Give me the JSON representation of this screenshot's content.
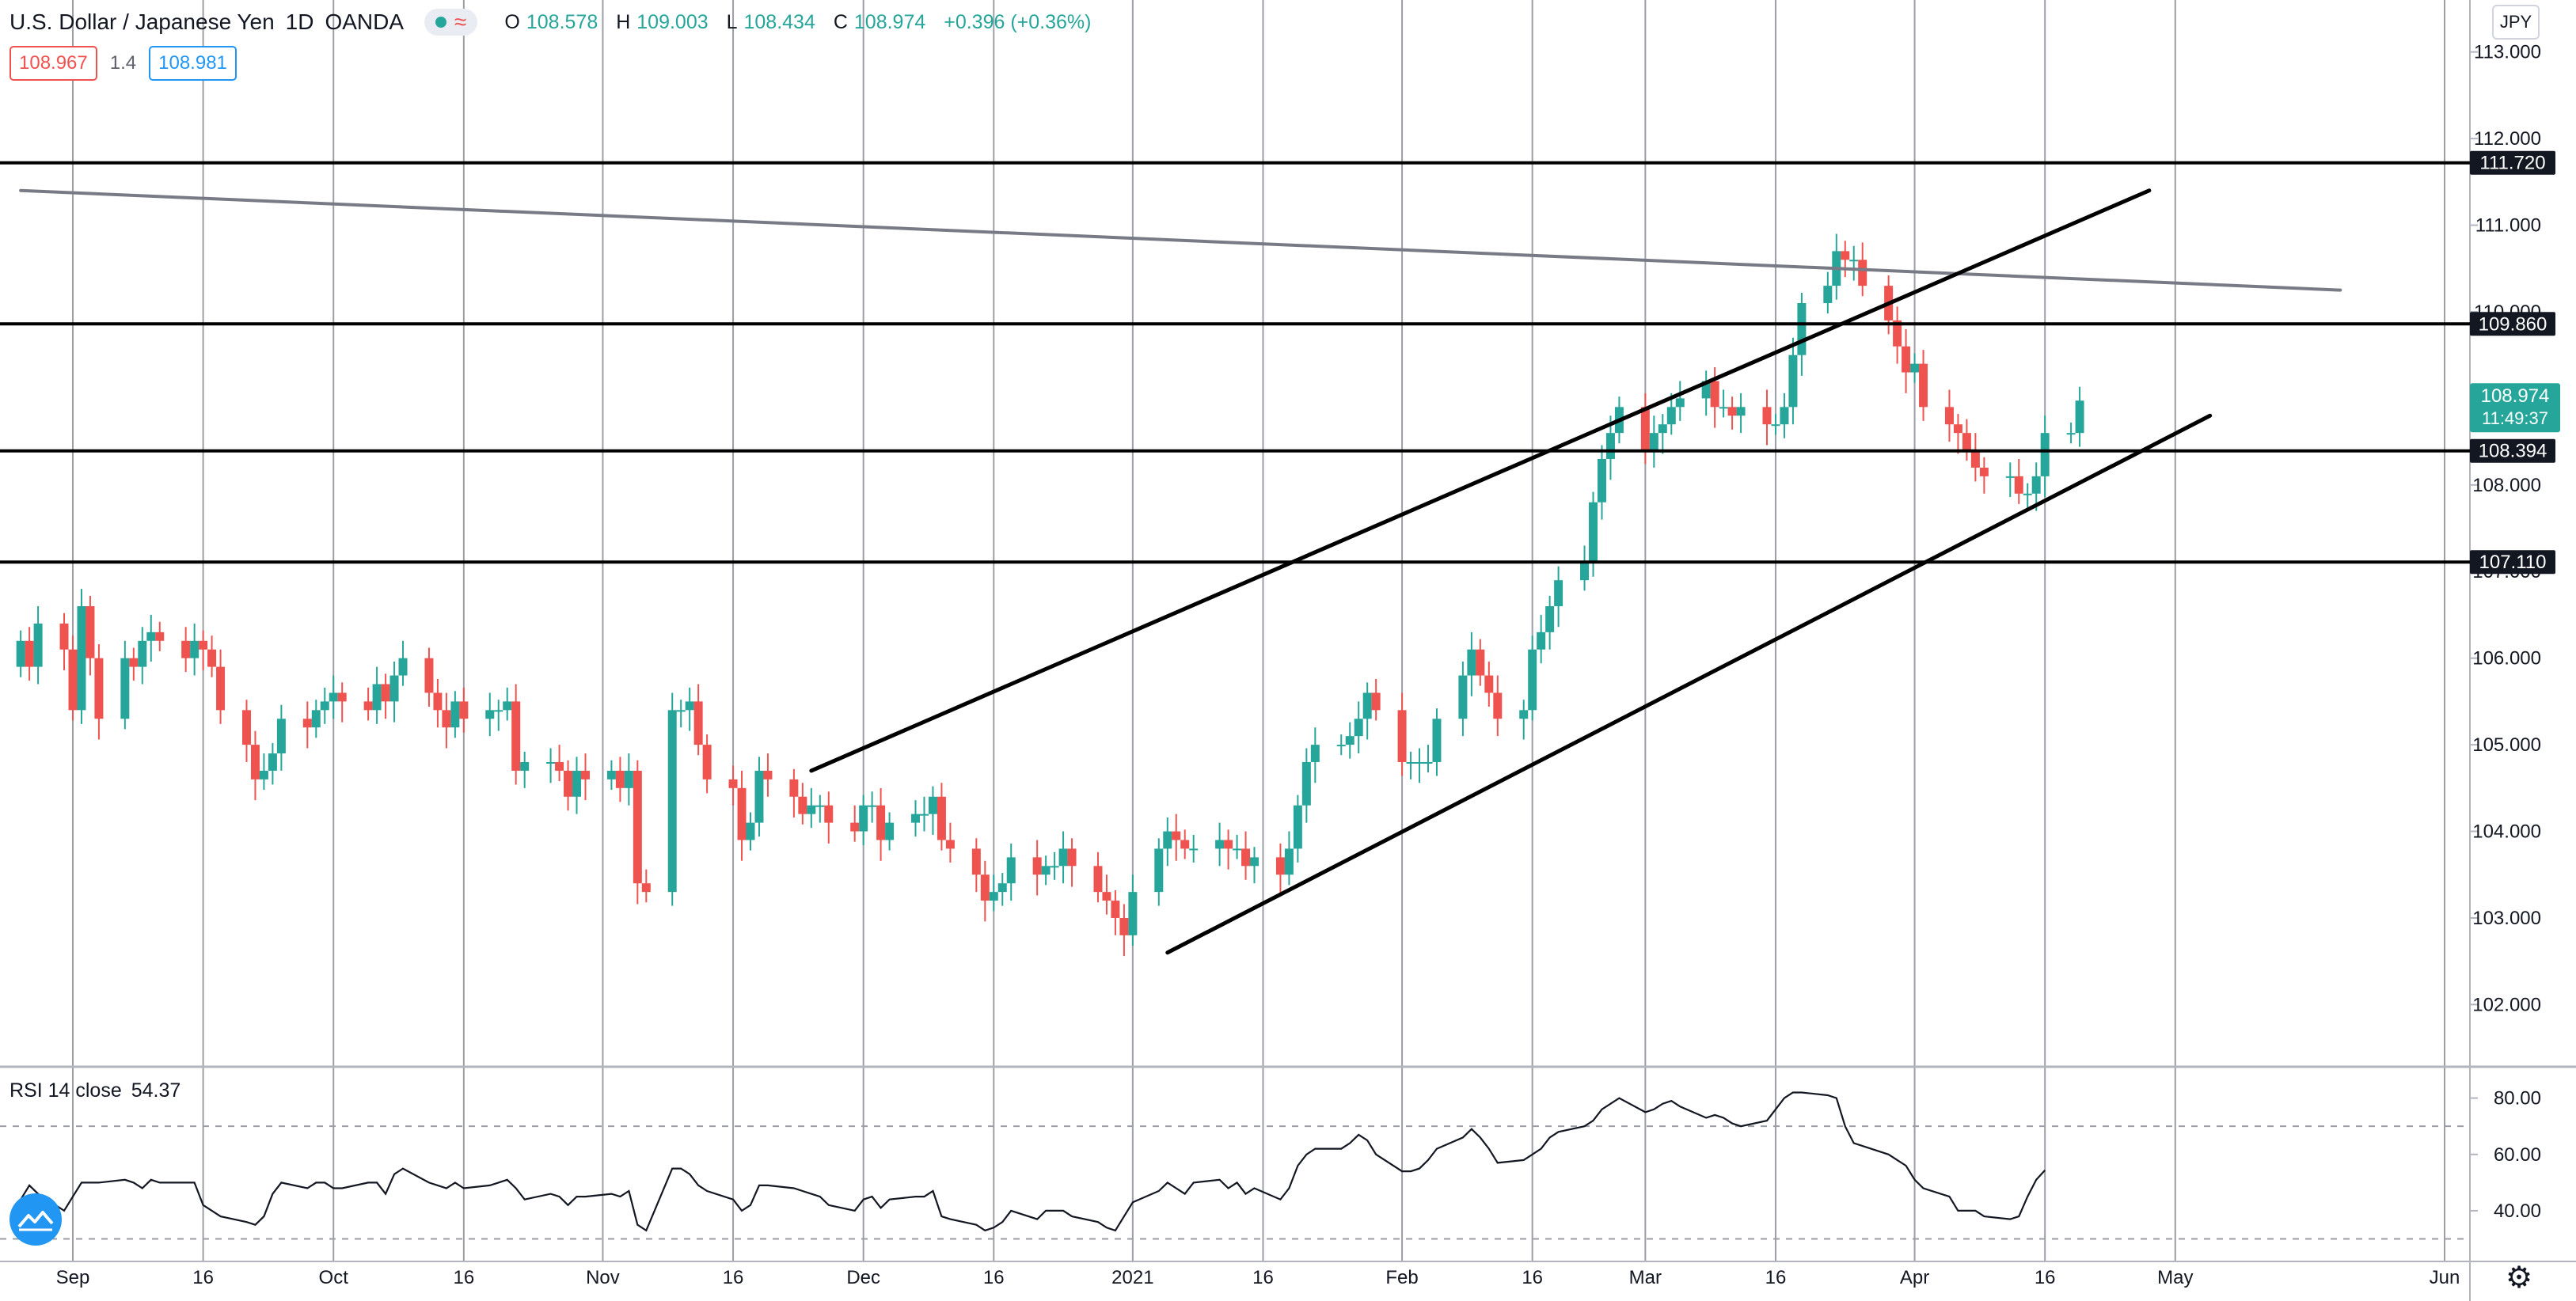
{
  "header": {
    "symbol": "U.S. Dollar / Japanese Yen",
    "interval": "1D",
    "broker": "OANDA",
    "open_label": "O",
    "open": "108.578",
    "high_label": "H",
    "high": "109.003",
    "low_label": "L",
    "low": "108.434",
    "close_label": "C",
    "close": "108.974",
    "change": "+0.396 (+0.36%)"
  },
  "quote": {
    "sell": "108.967",
    "spread": "1.4",
    "buy": "108.981"
  },
  "currency_button": "JPY",
  "colors": {
    "up": "#26a69a",
    "down": "#ef5350",
    "grid": "#9c9ea6",
    "line": "#000000",
    "trend_gray": "#787b86"
  },
  "icons": {
    "toggle": "wave-icon",
    "indicator_logo": "tradingview-logo-icon",
    "settings": "gear-icon"
  },
  "chart_data": [
    {
      "type": "candlestick",
      "x_axis": {
        "unit": "date",
        "start": "2020-08-26",
        "end": "2021-06-01",
        "tick_labels": [
          "Sep",
          "16",
          "Oct",
          "16",
          "Nov",
          "16",
          "Dec",
          "16",
          "2021",
          "16",
          "Feb",
          "16",
          "Mar",
          "16",
          "Apr",
          "16",
          "May",
          "Jun"
        ],
        "tick_dates": [
          "2020-09-01",
          "2020-09-16",
          "2020-10-01",
          "2020-10-16",
          "2020-11-01",
          "2020-11-16",
          "2020-12-01",
          "2020-12-16",
          "2021-01-01",
          "2021-01-16",
          "2021-02-01",
          "2021-02-16",
          "2021-03-01",
          "2021-03-16",
          "2021-04-01",
          "2021-04-16",
          "2021-05-01",
          "2021-06-01"
        ]
      },
      "y_axis": {
        "range": [
          101.3,
          113.6
        ],
        "tick_labels": [
          "102.000",
          "103.000",
          "104.000",
          "105.000",
          "106.000",
          "107.000",
          "108.000",
          "109.000",
          "110.000",
          "111.000",
          "112.000",
          "113.000"
        ],
        "ticks": [
          102,
          103,
          104,
          105,
          106,
          107,
          108,
          109,
          110,
          111,
          112,
          113
        ]
      },
      "grid": true,
      "closes": [
        106.2,
        105.9,
        106.4,
        106.1,
        105.4,
        106.6,
        106.0,
        105.3,
        106.0,
        105.9,
        106.2,
        106.3,
        106.2,
        106.0,
        106.2,
        106.1,
        105.9,
        105.4,
        105.0,
        104.6,
        104.7,
        104.9,
        105.3,
        105.2,
        105.4,
        105.5,
        105.6,
        105.5,
        105.4,
        105.7,
        105.5,
        105.8,
        106.0,
        105.6,
        105.4,
        105.2,
        105.5,
        105.3,
        105.4,
        105.4,
        105.5,
        104.7,
        104.8,
        104.8,
        104.7,
        104.4,
        104.7,
        104.6,
        104.7,
        104.5,
        104.7,
        103.4,
        103.3,
        105.4,
        105.4,
        105.5,
        105.0,
        104.6,
        104.5,
        103.9,
        104.1,
        104.7,
        104.6,
        104.4,
        104.2,
        104.3,
        104.3,
        104.1,
        104.0,
        104.3,
        104.3,
        103.9,
        104.1,
        104.2,
        104.2,
        104.4,
        103.9,
        103.8,
        103.5,
        103.2,
        103.3,
        103.4,
        103.7,
        103.5,
        103.6,
        103.6,
        103.8,
        103.6,
        103.3,
        103.2,
        103.0,
        102.8,
        103.3,
        103.8,
        104.0,
        103.9,
        103.8,
        103.8,
        103.9,
        103.8,
        103.8,
        103.6,
        103.7,
        103.5,
        103.8,
        104.3,
        104.8,
        105.0,
        105.0,
        105.1,
        105.3,
        105.6,
        105.4,
        104.8,
        104.8,
        104.8,
        104.8,
        105.3,
        105.8,
        106.1,
        105.8,
        105.6,
        105.3,
        105.4,
        106.1,
        106.3,
        106.6,
        106.9,
        107.1,
        107.8,
        108.3,
        108.6,
        108.9,
        108.4,
        108.6,
        108.7,
        108.9,
        109.0,
        109.2,
        108.9,
        108.9,
        108.8,
        108.9,
        108.7,
        108.7,
        108.9,
        109.5,
        110.1,
        110.3,
        110.7,
        110.6,
        110.6,
        110.3,
        109.9,
        109.6,
        109.3,
        109.4,
        108.9,
        108.7,
        108.6,
        108.4,
        108.2,
        108.1,
        108.1,
        107.9,
        107.9,
        108.1,
        108.6,
        108.6,
        108.974
      ],
      "rsi": {
        "label": "RSI 14 close",
        "value": "54.37",
        "levels": [
          70,
          30
        ],
        "range": [
          22,
          90
        ],
        "tick_labels": [
          "80.00",
          "60.00",
          "40.00"
        ],
        "ticks": [
          80,
          60,
          40
        ],
        "values": [
          44,
          49,
          46,
          40,
          45,
          50,
          50,
          50,
          51,
          50,
          48,
          51,
          50,
          50,
          50,
          42,
          40,
          38,
          36,
          35,
          38,
          46,
          50,
          48,
          50,
          50,
          48,
          48,
          50,
          50,
          46,
          53,
          55,
          50,
          49,
          48,
          50,
          48,
          49,
          50,
          51,
          48,
          44,
          46,
          45,
          42,
          45,
          45,
          46,
          45,
          47,
          35,
          33,
          55,
          55,
          53,
          49,
          47,
          44,
          40,
          42,
          49,
          49,
          48,
          47,
          46,
          45,
          42,
          40,
          44,
          45,
          41,
          44,
          45,
          45,
          47,
          38,
          37,
          35,
          33,
          34,
          36,
          40,
          37,
          40,
          40,
          40,
          38,
          36,
          34,
          33,
          38,
          43,
          47,
          50,
          48,
          46,
          50,
          51,
          48,
          50,
          46,
          48,
          44,
          48,
          56,
          60,
          62,
          62,
          64,
          67,
          65,
          60,
          54,
          54,
          55,
          58,
          62,
          66,
          69,
          66,
          62,
          57,
          58,
          60,
          62,
          66,
          68,
          70,
          72,
          76,
          78,
          80,
          75,
          76,
          78,
          79,
          77,
          73,
          74,
          73,
          71,
          70,
          72,
          76,
          80,
          82,
          82,
          81,
          80,
          70,
          64,
          63,
          60,
          58,
          56,
          51,
          48,
          45,
          40,
          40,
          40,
          38,
          37,
          38,
          45,
          51,
          54.37
        ]
      },
      "horizontal_lines": [
        {
          "value": 111.72,
          "label": "111.720"
        },
        {
          "value": 109.86,
          "label": "109.860"
        },
        {
          "value": 108.394,
          "label": "108.394"
        },
        {
          "value": 107.11,
          "label": "107.110"
        }
      ],
      "trend_lines": [
        {
          "kind": "gray",
          "from": [
            "2020-08-26",
            111.4
          ],
          "to": [
            "2021-05-20",
            110.25
          ]
        },
        {
          "kind": "black",
          "from": [
            "2020-11-25",
            104.7
          ],
          "to": [
            "2021-04-28",
            111.4
          ]
        },
        {
          "kind": "black",
          "from": [
            "2021-01-05",
            102.6
          ],
          "to": [
            "2021-05-05",
            108.8
          ]
        }
      ],
      "last_price_label": {
        "price": "108.974",
        "countdown": "11:49:37"
      }
    }
  ]
}
